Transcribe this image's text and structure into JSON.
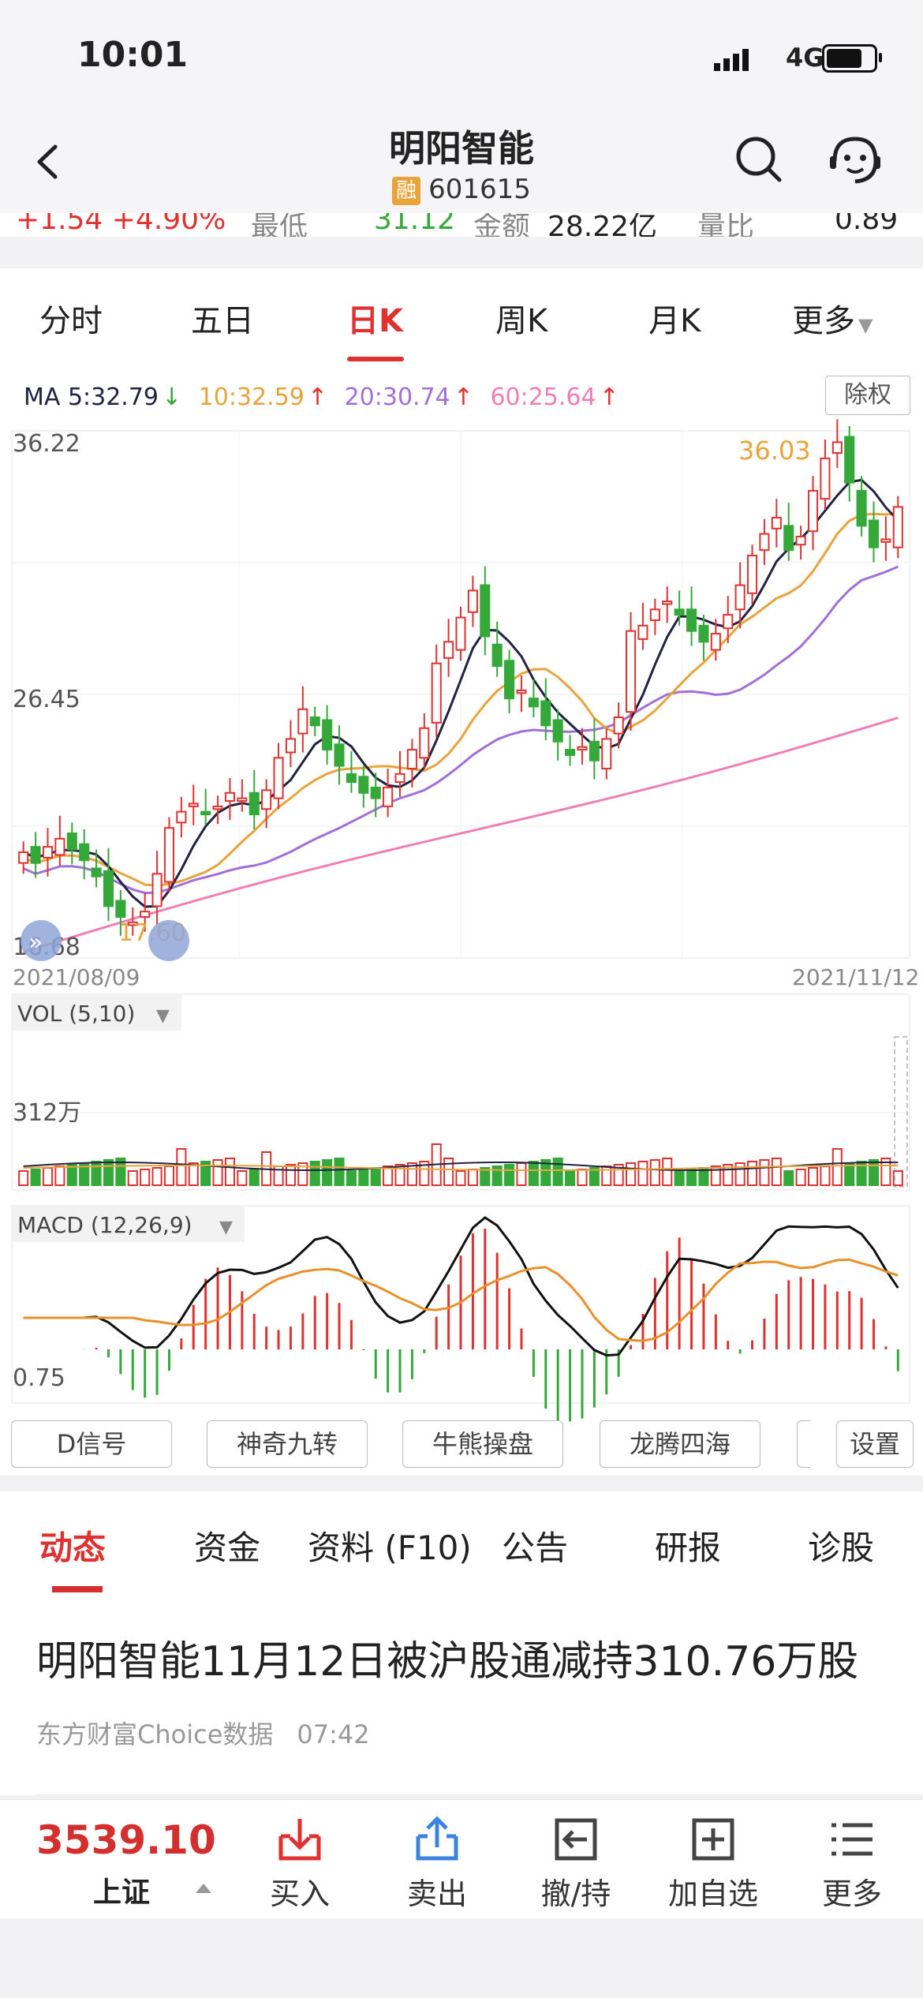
{
  "status": {
    "time": "10:01",
    "network": "4G"
  },
  "header": {
    "title": "明阳智能",
    "badge": "融",
    "code": "601615"
  },
  "quote_cut": {
    "change": "+1.54 +4.90%",
    "label1": "最低",
    "low": "31.12",
    "label2": "金额",
    "amount": "28.22亿",
    "label3": "量比",
    "ratio": "0.89"
  },
  "tabs": [
    "分时",
    "五日",
    "日K",
    "周K",
    "月K",
    "更多"
  ],
  "active_tab": "日K",
  "ma": {
    "ma5": "MA 5:32.79",
    "ma10": "10:32.59",
    "ma20": "20:30.74",
    "ma60": "60:25.64",
    "button": "除权"
  },
  "colors": {
    "up": "#e03131",
    "down": "#35a83a",
    "ma5": "#222244",
    "ma10": "#e8a33a",
    "ma20": "#a070d8",
    "ma60": "#ee7fb4"
  },
  "chart_data": [
    {
      "type": "candlestick",
      "title": "",
      "ylim": [
        16.68,
        36.22
      ],
      "y_ticks": [
        "36.22",
        "26.45",
        "16.68"
      ],
      "x_labels": [
        "2021/08/09",
        "2021/11/12"
      ],
      "annotations": {
        "high": "36.03",
        "low": "17.60"
      },
      "closes": [
        20.6,
        20.2,
        20.8,
        21.1,
        20.7,
        20.3,
        19.7,
        18.6,
        18.2,
        18.0,
        18.4,
        19.8,
        21.5,
        22.1,
        22.4,
        22.0,
        22.3,
        22.8,
        22.6,
        22.0,
        22.9,
        24.1,
        24.8,
        25.9,
        25.3,
        24.4,
        23.8,
        23.2,
        22.8,
        22.6,
        23.0,
        23.5,
        24.4,
        25.2,
        27.6,
        28.4,
        29.3,
        30.3,
        28.6,
        27.5,
        26.3,
        26.6,
        26.0,
        25.3,
        24.7,
        24.2,
        24.5,
        24.0,
        24.8,
        25.6,
        28.8,
        29.0,
        29.6,
        29.9,
        29.4,
        28.8,
        28.4,
        28.7,
        29.4,
        30.5,
        31.6,
        32.4,
        33.0,
        31.8,
        32.3,
        34.0,
        35.2,
        35.8,
        34.3,
        32.7,
        31.9,
        32.2,
        33.4
      ],
      "volume_label": "VOL (5,10)",
      "volume_tick": "312万",
      "macd_label": "MACD (12,26,9)",
      "macd_tick": "0.75"
    }
  ],
  "tools": [
    "D信号",
    "神奇九转",
    "牛熊操盘",
    "龙腾四海",
    "设置"
  ],
  "news_tabs": [
    "动态",
    "资金",
    "资料 (F10)",
    "公告",
    "研报",
    "诊股"
  ],
  "news": {
    "headline": "明阳智能11月12日被沪股通减持310.76万股",
    "source": "东方财富Choice数据",
    "time": "07:42"
  },
  "bottom": {
    "index_value": "3539.10",
    "index_name": "上证",
    "actions": [
      "买入",
      "卖出",
      "撤/持",
      "加自选",
      "更多"
    ]
  }
}
